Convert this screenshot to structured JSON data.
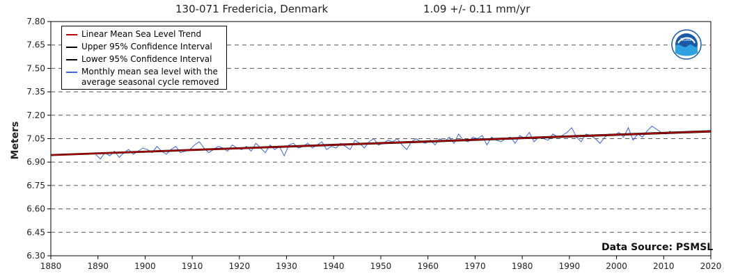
{
  "header": {
    "station": "130-071 Fredericia, Denmark",
    "trend": "1.09 +/-  0.11 mm/yr"
  },
  "source_label": "Data Source: PSMSL",
  "logo_text": "NOAA",
  "colors": {
    "trend": "#b00000",
    "confidence": "#000000",
    "monthly": "#3a63d8",
    "grid": "#555555"
  },
  "chart_data": {
    "type": "line",
    "title": "130-071 Fredericia, Denmark",
    "subtitle": "1.09 +/-  0.11 mm/yr",
    "xlabel": "",
    "ylabel": "Meters",
    "xlim": [
      1880,
      2020
    ],
    "ylim": [
      6.3,
      7.8
    ],
    "x_ticks": [
      "1880",
      "1890",
      "1900",
      "1910",
      "1920",
      "1930",
      "1940",
      "1950",
      "1960",
      "1970",
      "1980",
      "1990",
      "2000",
      "2010",
      "2020"
    ],
    "y_ticks": [
      "7.80",
      "7.65",
      "7.50",
      "7.35",
      "7.20",
      "7.05",
      "6.90",
      "6.75",
      "6.60",
      "6.45",
      "6.30"
    ],
    "grid": "horizontal dashed",
    "legend_placement": "top-left",
    "legend": [
      "Linear Mean Sea Level Trend",
      "Upper 95% Confidence Interval",
      "Lower 95% Confidence Interval",
      "Monthly mean sea level with the\n average seasonal cycle removed"
    ],
    "annotation": "Data Source: PSMSL",
    "series": [
      {
        "name": "Linear Mean Sea Level Trend",
        "x": [
          1880,
          2020
        ],
        "y": [
          6.945,
          7.097
        ]
      },
      {
        "name": "Upper 95% Confidence Interval",
        "x": [
          1880,
          2020
        ],
        "y": [
          6.949,
          7.102
        ]
      },
      {
        "name": "Lower 95% Confidence Interval",
        "x": [
          1880,
          2020
        ],
        "y": [
          6.941,
          7.092
        ]
      },
      {
        "name": "Monthly mean sea level with the\n average seasonal cycle removed",
        "x": [
          1889.5,
          1890.5,
          1891.5,
          1892.5,
          1893.5,
          1894.5,
          1895.5,
          1896.5,
          1897.5,
          1898.5,
          1899.5,
          1900.5,
          1901.5,
          1902.5,
          1903.5,
          1904.5,
          1905.5,
          1906.5,
          1907.5,
          1908.5,
          1909.5,
          1910.5,
          1911.5,
          1912.5,
          1913.5,
          1914.5,
          1915.5,
          1916.5,
          1917.5,
          1918.5,
          1919.5,
          1920.5,
          1921.5,
          1922.5,
          1923.5,
          1924.5,
          1925.5,
          1926.5,
          1927.5,
          1928.5,
          1929.5,
          1930.5,
          1931.5,
          1932.5,
          1933.5,
          1934.5,
          1935.5,
          1936.5,
          1937.5,
          1938.5,
          1939.5,
          1940.5,
          1941.5,
          1942.5,
          1943.5,
          1944.5,
          1945.5,
          1946.5,
          1947.5,
          1948.5,
          1949.5,
          1950.5,
          1951.5,
          1952.5,
          1953.5,
          1954.5,
          1955.5,
          1956.5,
          1957.5,
          1958.5,
          1959.5,
          1960.5,
          1961.5,
          1962.5,
          1963.5,
          1964.5,
          1965.5,
          1966.5,
          1967.5,
          1968.5,
          1969.5,
          1970.5,
          1971.5,
          1972.5,
          1973.5,
          1974.5,
          1975.5,
          1976.5,
          1977.5,
          1978.5,
          1979.5,
          1980.5,
          1981.5,
          1982.5,
          1983.5,
          1984.5,
          1985.5,
          1986.5,
          1987.5,
          1988.5,
          1989.5,
          1990.5,
          1991.5,
          1992.5,
          1993.5,
          1994.5,
          1995.5,
          1996.5,
          1997.5,
          1998.5,
          1999.5,
          2000.5,
          2001.5,
          2002.5,
          2003.5,
          2004.5,
          2005.5,
          2006.5,
          2007.5,
          2008.5,
          2009.5,
          2010.5,
          2011.5
        ],
        "y": [
          6.95,
          6.92,
          6.96,
          6.94,
          6.97,
          6.93,
          6.96,
          6.98,
          6.95,
          6.97,
          6.99,
          6.98,
          6.96,
          7.0,
          6.97,
          6.95,
          6.98,
          7.0,
          6.96,
          6.97,
          6.98,
          7.01,
          7.03,
          6.99,
          6.96,
          6.98,
          7.0,
          6.99,
          6.97,
          7.01,
          6.99,
          6.98,
          7.0,
          6.97,
          7.02,
          6.99,
          6.96,
          7.01,
          6.98,
          7.0,
          6.94,
          7.01,
          7.02,
          6.99,
          7.0,
          7.02,
          6.99,
          7.01,
          7.03,
          6.98,
          7.0,
          6.99,
          7.02,
          7.0,
          6.98,
          7.04,
          7.02,
          6.99,
          7.03,
          7.05,
          7.01,
          7.02,
          7.04,
          7.03,
          7.05,
          7.01,
          6.98,
          7.03,
          7.05,
          7.03,
          7.02,
          7.04,
          7.01,
          7.05,
          7.03,
          7.06,
          7.02,
          7.08,
          7.04,
          7.03,
          7.06,
          7.05,
          7.07,
          7.01,
          7.06,
          7.04,
          7.03,
          7.05,
          7.06,
          7.02,
          7.07,
          7.05,
          7.09,
          7.03,
          7.06,
          7.05,
          7.04,
          7.08,
          7.06,
          7.07,
          7.09,
          7.12,
          7.06,
          7.03,
          7.08,
          7.07,
          7.05,
          7.02,
          7.06,
          7.08,
          7.07,
          7.09,
          7.06,
          7.12,
          7.04,
          7.08,
          7.06,
          7.1,
          7.13,
          7.11,
          7.09,
          7.08,
          7.1
        ]
      }
    ]
  }
}
